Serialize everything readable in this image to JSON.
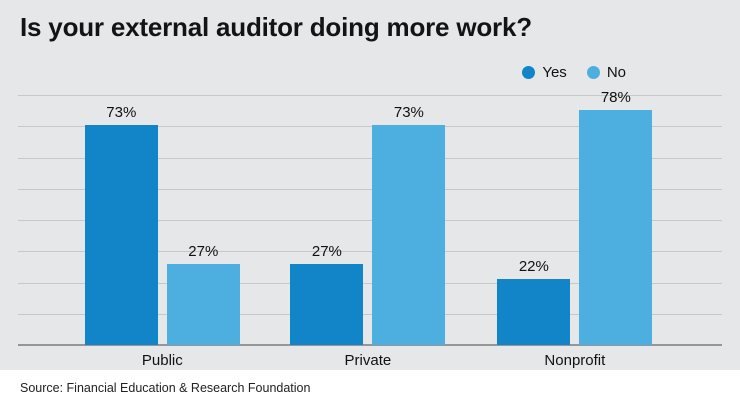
{
  "title": "Is your external auditor doing more work?",
  "source": "Source: Financial Education & Research Foundation",
  "chart_data": {
    "type": "bar",
    "title": "Is your external auditor doing more work?",
    "categories": [
      "Public",
      "Private",
      "Nonprofit"
    ],
    "series": [
      {
        "name": "Yes",
        "color": "#1285c8",
        "values": [
          73,
          27,
          22
        ]
      },
      {
        "name": "No",
        "color": "#4cafe0",
        "values": [
          27,
          73,
          78
        ]
      }
    ],
    "value_suffix": "%",
    "unit": "percent",
    "xlabel": "",
    "ylabel": "",
    "ylim": [
      0,
      83
    ],
    "grid": true,
    "gridline_count": 9,
    "legend_position": "top-right"
  },
  "colors": {
    "chart_background": "#e6e7e8",
    "page_background": "#ffffff",
    "gridline": "#c7c8ca",
    "axis": "#94969a",
    "text": "#111111"
  }
}
